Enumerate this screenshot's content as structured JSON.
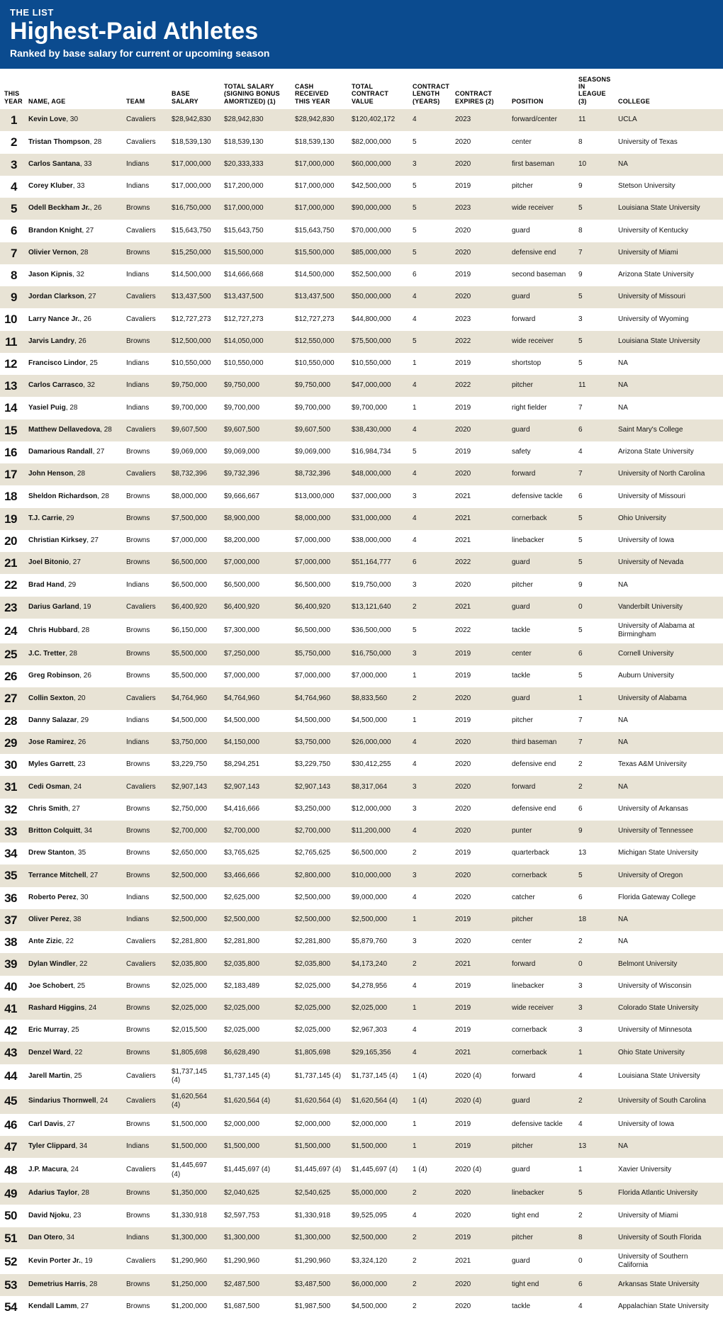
{
  "header": {
    "kicker": "THE LIST",
    "headline": "Highest-Paid Athletes",
    "subhead": "Ranked by base salary for current or upcoming season"
  },
  "columns": [
    "THIS YEAR",
    "NAME, AGE",
    "TEAM",
    "BASE SALARY",
    "TOTAL SALARY (SIGNING BONUS AMORTIZED) (1)",
    "CASH RECEIVED THIS YEAR",
    "TOTAL CONTRACT VALUE",
    "CONTRACT LENGTH (YEARS)",
    "CONTRACT EXPIRES (2)",
    "POSITION",
    "SEASONS IN LEAGUE (3)",
    "COLLEGE"
  ],
  "rows": [
    {
      "rank": "1",
      "name": "Kevin Love",
      "age": "30",
      "team": "Cavaliers",
      "base": "$28,942,830",
      "total": "$28,942,830",
      "cash": "$28,942,830",
      "cv": "$120,402,172",
      "len": "4",
      "exp": "2023",
      "pos": "forward/center",
      "seas": "11",
      "coll": "UCLA"
    },
    {
      "rank": "2",
      "name": "Tristan Thompson",
      "age": "28",
      "team": "Cavaliers",
      "base": "$18,539,130",
      "total": "$18,539,130",
      "cash": "$18,539,130",
      "cv": "$82,000,000",
      "len": "5",
      "exp": "2020",
      "pos": "center",
      "seas": "8",
      "coll": "University of Texas"
    },
    {
      "rank": "3",
      "name": "Carlos Santana",
      "age": "33",
      "team": "Indians",
      "base": "$17,000,000",
      "total": "$20,333,333",
      "cash": "$17,000,000",
      "cv": "$60,000,000",
      "len": "3",
      "exp": "2020",
      "pos": "first baseman",
      "seas": "10",
      "coll": "NA"
    },
    {
      "rank": "4",
      "name": "Corey Kluber",
      "age": "33",
      "team": "Indians",
      "base": "$17,000,000",
      "total": "$17,200,000",
      "cash": "$17,000,000",
      "cv": "$42,500,000",
      "len": "5",
      "exp": "2019",
      "pos": "pitcher",
      "seas": "9",
      "coll": "Stetson University"
    },
    {
      "rank": "5",
      "name": "Odell Beckham Jr.",
      "age": "26",
      "team": "Browns",
      "base": "$16,750,000",
      "total": "$17,000,000",
      "cash": "$17,000,000",
      "cv": "$90,000,000",
      "len": "5",
      "exp": "2023",
      "pos": "wide receiver",
      "seas": "5",
      "coll": "Louisiana State University"
    },
    {
      "rank": "6",
      "name": "Brandon Knight",
      "age": "27",
      "team": "Cavaliers",
      "base": "$15,643,750",
      "total": "$15,643,750",
      "cash": "$15,643,750",
      "cv": "$70,000,000",
      "len": "5",
      "exp": "2020",
      "pos": "guard",
      "seas": "8",
      "coll": "University of Kentucky"
    },
    {
      "rank": "7",
      "name": "Olivier Vernon",
      "age": "28",
      "team": "Browns",
      "base": "$15,250,000",
      "total": "$15,500,000",
      "cash": "$15,500,000",
      "cv": "$85,000,000",
      "len": "5",
      "exp": "2020",
      "pos": "defensive end",
      "seas": "7",
      "coll": "University of Miami"
    },
    {
      "rank": "8",
      "name": "Jason Kipnis",
      "age": "32",
      "team": "Indians",
      "base": "$14,500,000",
      "total": "$14,666,668",
      "cash": "$14,500,000",
      "cv": "$52,500,000",
      "len": "6",
      "exp": "2019",
      "pos": "second baseman",
      "seas": "9",
      "coll": "Arizona State University"
    },
    {
      "rank": "9",
      "name": "Jordan Clarkson",
      "age": "27",
      "team": "Cavaliers",
      "base": "$13,437,500",
      "total": "$13,437,500",
      "cash": "$13,437,500",
      "cv": "$50,000,000",
      "len": "4",
      "exp": "2020",
      "pos": "guard",
      "seas": "5",
      "coll": "University of Missouri"
    },
    {
      "rank": "10",
      "name": "Larry Nance Jr.",
      "age": "26",
      "team": "Cavaliers",
      "base": "$12,727,273",
      "total": "$12,727,273",
      "cash": "$12,727,273",
      "cv": "$44,800,000",
      "len": "4",
      "exp": "2023",
      "pos": "forward",
      "seas": "3",
      "coll": "University of Wyoming"
    },
    {
      "rank": "11",
      "name": "Jarvis Landry",
      "age": "26",
      "team": "Browns",
      "base": "$12,500,000",
      "total": "$14,050,000",
      "cash": "$12,550,000",
      "cv": "$75,500,000",
      "len": "5",
      "exp": "2022",
      "pos": "wide receiver",
      "seas": "5",
      "coll": "Louisiana State University"
    },
    {
      "rank": "12",
      "name": "Francisco Lindor",
      "age": "25",
      "team": "Indians",
      "base": "$10,550,000",
      "total": "$10,550,000",
      "cash": "$10,550,000",
      "cv": "$10,550,000",
      "len": "1",
      "exp": "2019",
      "pos": "shortstop",
      "seas": "5",
      "coll": "NA"
    },
    {
      "rank": "13",
      "name": "Carlos Carrasco",
      "age": "32",
      "team": "Indians",
      "base": "$9,750,000",
      "total": "$9,750,000",
      "cash": "$9,750,000",
      "cv": "$47,000,000",
      "len": "4",
      "exp": "2022",
      "pos": "pitcher",
      "seas": "11",
      "coll": "NA"
    },
    {
      "rank": "14",
      "name": "Yasiel Puig",
      "age": "28",
      "team": "Indians",
      "base": "$9,700,000",
      "total": "$9,700,000",
      "cash": "$9,700,000",
      "cv": "$9,700,000",
      "len": "1",
      "exp": "2019",
      "pos": "right fielder",
      "seas": "7",
      "coll": "NA"
    },
    {
      "rank": "15",
      "name": "Matthew Dellavedova",
      "age": "28",
      "team": "Cavaliers",
      "base": "$9,607,500",
      "total": "$9,607,500",
      "cash": "$9,607,500",
      "cv": "$38,430,000",
      "len": "4",
      "exp": "2020",
      "pos": "guard",
      "seas": "6",
      "coll": "Saint Mary's College"
    },
    {
      "rank": "16",
      "name": "Damarious Randall",
      "age": "27",
      "team": "Browns",
      "base": "$9,069,000",
      "total": "$9,069,000",
      "cash": "$9,069,000",
      "cv": "$16,984,734",
      "len": "5",
      "exp": "2019",
      "pos": "safety",
      "seas": "4",
      "coll": "Arizona State University"
    },
    {
      "rank": "17",
      "name": "John Henson",
      "age": "28",
      "team": "Cavaliers",
      "base": "$8,732,396",
      "total": "$9,732,396",
      "cash": "$8,732,396",
      "cv": "$48,000,000",
      "len": "4",
      "exp": "2020",
      "pos": "forward",
      "seas": "7",
      "coll": "University of North Carolina"
    },
    {
      "rank": "18",
      "name": "Sheldon Richardson",
      "age": "28",
      "team": "Browns",
      "base": "$8,000,000",
      "total": "$9,666,667",
      "cash": "$13,000,000",
      "cv": "$37,000,000",
      "len": "3",
      "exp": "2021",
      "pos": "defensive tackle",
      "seas": "6",
      "coll": "University of Missouri"
    },
    {
      "rank": "19",
      "name": "T.J. Carrie",
      "age": "29",
      "team": "Browns",
      "base": "$7,500,000",
      "total": "$8,900,000",
      "cash": "$8,000,000",
      "cv": "$31,000,000",
      "len": "4",
      "exp": "2021",
      "pos": "cornerback",
      "seas": "5",
      "coll": "Ohio University"
    },
    {
      "rank": "20",
      "name": "Christian Kirksey",
      "age": "27",
      "team": "Browns",
      "base": "$7,000,000",
      "total": "$8,200,000",
      "cash": "$7,000,000",
      "cv": "$38,000,000",
      "len": "4",
      "exp": "2021",
      "pos": "linebacker",
      "seas": "5",
      "coll": "University of Iowa"
    },
    {
      "rank": "21",
      "name": "Joel Bitonio",
      "age": "27",
      "team": "Browns",
      "base": "$6,500,000",
      "total": "$7,000,000",
      "cash": "$7,000,000",
      "cv": "$51,164,777",
      "len": "6",
      "exp": "2022",
      "pos": "guard",
      "seas": "5",
      "coll": "University of Nevada"
    },
    {
      "rank": "22",
      "name": "Brad Hand",
      "age": "29",
      "team": "Indians",
      "base": "$6,500,000",
      "total": "$6,500,000",
      "cash": "$6,500,000",
      "cv": "$19,750,000",
      "len": "3",
      "exp": "2020",
      "pos": "pitcher",
      "seas": "9",
      "coll": "NA"
    },
    {
      "rank": "23",
      "name": "Darius Garland",
      "age": "19",
      "team": "Cavaliers",
      "base": "$6,400,920",
      "total": "$6,400,920",
      "cash": "$6,400,920",
      "cv": "$13,121,640",
      "len": "2",
      "exp": "2021",
      "pos": "guard",
      "seas": "0",
      "coll": "Vanderbilt University"
    },
    {
      "rank": "24",
      "name": "Chris Hubbard",
      "age": "28",
      "team": "Browns",
      "base": "$6,150,000",
      "total": "$7,300,000",
      "cash": "$6,500,000",
      "cv": "$36,500,000",
      "len": "5",
      "exp": "2022",
      "pos": "tackle",
      "seas": "5",
      "coll": "University of Alabama at Birmingham"
    },
    {
      "rank": "25",
      "name": "J.C. Tretter",
      "age": "28",
      "team": "Browns",
      "base": "$5,500,000",
      "total": "$7,250,000",
      "cash": "$5,750,000",
      "cv": "$16,750,000",
      "len": "3",
      "exp": "2019",
      "pos": "center",
      "seas": "6",
      "coll": "Cornell University"
    },
    {
      "rank": "26",
      "name": "Greg Robinson",
      "age": "26",
      "team": "Browns",
      "base": "$5,500,000",
      "total": "$7,000,000",
      "cash": "$7,000,000",
      "cv": "$7,000,000",
      "len": "1",
      "exp": "2019",
      "pos": "tackle",
      "seas": "5",
      "coll": "Auburn University"
    },
    {
      "rank": "27",
      "name": "Collin Sexton",
      "age": "20",
      "team": "Cavaliers",
      "base": "$4,764,960",
      "total": "$4,764,960",
      "cash": "$4,764,960",
      "cv": "$8,833,560",
      "len": "2",
      "exp": "2020",
      "pos": "guard",
      "seas": "1",
      "coll": "University of Alabama"
    },
    {
      "rank": "28",
      "name": "Danny Salazar",
      "age": "29",
      "team": "Indians",
      "base": "$4,500,000",
      "total": "$4,500,000",
      "cash": "$4,500,000",
      "cv": "$4,500,000",
      "len": "1",
      "exp": "2019",
      "pos": "pitcher",
      "seas": "7",
      "coll": "NA"
    },
    {
      "rank": "29",
      "name": "Jose Ramirez",
      "age": "26",
      "team": "Indians",
      "base": "$3,750,000",
      "total": "$4,150,000",
      "cash": "$3,750,000",
      "cv": "$26,000,000",
      "len": "4",
      "exp": "2020",
      "pos": "third baseman",
      "seas": "7",
      "coll": "NA"
    },
    {
      "rank": "30",
      "name": "Myles Garrett",
      "age": "23",
      "team": "Browns",
      "base": "$3,229,750",
      "total": "$8,294,251",
      "cash": "$3,229,750",
      "cv": "$30,412,255",
      "len": "4",
      "exp": "2020",
      "pos": "defensive end",
      "seas": "2",
      "coll": "Texas A&M University"
    },
    {
      "rank": "31",
      "name": "Cedi Osman",
      "age": "24",
      "team": "Cavaliers",
      "base": "$2,907,143",
      "total": "$2,907,143",
      "cash": "$2,907,143",
      "cv": "$8,317,064",
      "len": "3",
      "exp": "2020",
      "pos": "forward",
      "seas": "2",
      "coll": "NA"
    },
    {
      "rank": "32",
      "name": "Chris Smith",
      "age": "27",
      "team": "Browns",
      "base": "$2,750,000",
      "total": "$4,416,666",
      "cash": "$3,250,000",
      "cv": "$12,000,000",
      "len": "3",
      "exp": "2020",
      "pos": "defensive end",
      "seas": "6",
      "coll": "University of Arkansas"
    },
    {
      "rank": "33",
      "name": "Britton Colquitt",
      "age": "34",
      "team": "Browns",
      "base": "$2,700,000",
      "total": "$2,700,000",
      "cash": "$2,700,000",
      "cv": "$11,200,000",
      "len": "4",
      "exp": "2020",
      "pos": "punter",
      "seas": "9",
      "coll": "University of Tennessee"
    },
    {
      "rank": "34",
      "name": "Drew Stanton",
      "age": "35",
      "team": "Browns",
      "base": "$2,650,000",
      "total": "$3,765,625",
      "cash": "$2,765,625",
      "cv": "$6,500,000",
      "len": "2",
      "exp": "2019",
      "pos": "quarterback",
      "seas": "13",
      "coll": "Michigan State University"
    },
    {
      "rank": "35",
      "name": "Terrance Mitchell",
      "age": "27",
      "team": "Browns",
      "base": "$2,500,000",
      "total": "$3,466,666",
      "cash": "$2,800,000",
      "cv": "$10,000,000",
      "len": "3",
      "exp": "2020",
      "pos": "cornerback",
      "seas": "5",
      "coll": "University of Oregon"
    },
    {
      "rank": "36",
      "name": "Roberto Perez",
      "age": "30",
      "team": "Indians",
      "base": "$2,500,000",
      "total": "$2,625,000",
      "cash": "$2,500,000",
      "cv": "$9,000,000",
      "len": "4",
      "exp": "2020",
      "pos": "catcher",
      "seas": "6",
      "coll": "Florida Gateway College"
    },
    {
      "rank": "37",
      "name": "Oliver Perez",
      "age": "38",
      "team": "Indians",
      "base": "$2,500,000",
      "total": "$2,500,000",
      "cash": "$2,500,000",
      "cv": "$2,500,000",
      "len": "1",
      "exp": "2019",
      "pos": "pitcher",
      "seas": "18",
      "coll": "NA"
    },
    {
      "rank": "38",
      "name": "Ante Zizic",
      "age": "22",
      "team": "Cavaliers",
      "base": "$2,281,800",
      "total": "$2,281,800",
      "cash": "$2,281,800",
      "cv": "$5,879,760",
      "len": "3",
      "exp": "2020",
      "pos": "center",
      "seas": "2",
      "coll": "NA"
    },
    {
      "rank": "39",
      "name": "Dylan Windler",
      "age": "22",
      "team": "Cavaliers",
      "base": "$2,035,800",
      "total": "$2,035,800",
      "cash": "$2,035,800",
      "cv": "$4,173,240",
      "len": "2",
      "exp": "2021",
      "pos": "forward",
      "seas": "0",
      "coll": "Belmont University"
    },
    {
      "rank": "40",
      "name": "Joe Schobert",
      "age": "25",
      "team": "Browns",
      "base": "$2,025,000",
      "total": "$2,183,489",
      "cash": "$2,025,000",
      "cv": "$4,278,956",
      "len": "4",
      "exp": "2019",
      "pos": "linebacker",
      "seas": "3",
      "coll": "University of Wisconsin"
    },
    {
      "rank": "41",
      "name": "Rashard Higgins",
      "age": "24",
      "team": "Browns",
      "base": "$2,025,000",
      "total": "$2,025,000",
      "cash": "$2,025,000",
      "cv": "$2,025,000",
      "len": "1",
      "exp": "2019",
      "pos": "wide receiver",
      "seas": "3",
      "coll": "Colorado State University"
    },
    {
      "rank": "42",
      "name": "Eric Murray",
      "age": "25",
      "team": "Browns",
      "base": "$2,015,500",
      "total": "$2,025,000",
      "cash": "$2,025,000",
      "cv": "$2,967,303",
      "len": "4",
      "exp": "2019",
      "pos": "cornerback",
      "seas": "3",
      "coll": "University of Minnesota"
    },
    {
      "rank": "43",
      "name": "Denzel Ward",
      "age": "22",
      "team": "Browns",
      "base": "$1,805,698",
      "total": "$6,628,490",
      "cash": "$1,805,698",
      "cv": "$29,165,356",
      "len": "4",
      "exp": "2021",
      "pos": "cornerback",
      "seas": "1",
      "coll": "Ohio State University"
    },
    {
      "rank": "44",
      "name": "Jarell Martin",
      "age": "25",
      "team": "Cavaliers",
      "base": "$1,737,145 (4)",
      "total": "$1,737,145 (4)",
      "cash": "$1,737,145 (4)",
      "cv": "$1,737,145 (4)",
      "len": "1 (4)",
      "exp": "2020 (4)",
      "pos": "forward",
      "seas": "4",
      "coll": "Louisiana State University"
    },
    {
      "rank": "45",
      "name": "Sindarius Thornwell",
      "age": "24",
      "team": "Cavaliers",
      "base": "$1,620,564 (4)",
      "total": "$1,620,564 (4)",
      "cash": "$1,620,564 (4)",
      "cv": "$1,620,564 (4)",
      "len": "1 (4)",
      "exp": "2020 (4)",
      "pos": "guard",
      "seas": "2",
      "coll": "University of South Carolina"
    },
    {
      "rank": "46",
      "name": "Carl Davis",
      "age": "27",
      "team": "Browns",
      "base": "$1,500,000",
      "total": "$2,000,000",
      "cash": "$2,000,000",
      "cv": "$2,000,000",
      "len": "1",
      "exp": "2019",
      "pos": "defensive tackle",
      "seas": "4",
      "coll": "University of Iowa"
    },
    {
      "rank": "47",
      "name": "Tyler Clippard",
      "age": "34",
      "team": "Indians",
      "base": "$1,500,000",
      "total": "$1,500,000",
      "cash": "$1,500,000",
      "cv": "$1,500,000",
      "len": "1",
      "exp": "2019",
      "pos": "pitcher",
      "seas": "13",
      "coll": "NA"
    },
    {
      "rank": "48",
      "name": "J.P. Macura",
      "age": "24",
      "team": "Cavaliers",
      "base": "$1,445,697 (4)",
      "total": "$1,445,697 (4)",
      "cash": "$1,445,697 (4)",
      "cv": "$1,445,697 (4)",
      "len": "1 (4)",
      "exp": "2020 (4)",
      "pos": "guard",
      "seas": "1",
      "coll": "Xavier University"
    },
    {
      "rank": "49",
      "name": "Adarius Taylor",
      "age": "28",
      "team": "Browns",
      "base": "$1,350,000",
      "total": "$2,040,625",
      "cash": "$2,540,625",
      "cv": "$5,000,000",
      "len": "2",
      "exp": "2020",
      "pos": "linebacker",
      "seas": "5",
      "coll": "Florida Atlantic University"
    },
    {
      "rank": "50",
      "name": "David Njoku",
      "age": "23",
      "team": "Browns",
      "base": "$1,330,918",
      "total": "$2,597,753",
      "cash": "$1,330,918",
      "cv": "$9,525,095",
      "len": "4",
      "exp": "2020",
      "pos": "tight end",
      "seas": "2",
      "coll": "University of Miami"
    },
    {
      "rank": "51",
      "name": "Dan Otero",
      "age": "34",
      "team": "Indians",
      "base": "$1,300,000",
      "total": "$1,300,000",
      "cash": "$1,300,000",
      "cv": "$2,500,000",
      "len": "2",
      "exp": "2019",
      "pos": "pitcher",
      "seas": "8",
      "coll": "University of South Florida"
    },
    {
      "rank": "52",
      "name": "Kevin Porter Jr.",
      "age": "19",
      "team": "Cavaliers",
      "base": "$1,290,960",
      "total": "$1,290,960",
      "cash": "$1,290,960",
      "cv": "$3,324,120",
      "len": "2",
      "exp": "2021",
      "pos": "guard",
      "seas": "0",
      "coll": "University of Southern California"
    },
    {
      "rank": "53",
      "name": "Demetrius Harris",
      "age": "28",
      "team": "Browns",
      "base": "$1,250,000",
      "total": "$2,487,500",
      "cash": "$3,487,500",
      "cv": "$6,000,000",
      "len": "2",
      "exp": "2020",
      "pos": "tight end",
      "seas": "6",
      "coll": "Arkansas State University"
    },
    {
      "rank": "54",
      "name": "Kendall Lamm",
      "age": "27",
      "team": "Browns",
      "base": "$1,200,000",
      "total": "$1,687,500",
      "cash": "$1,987,500",
      "cv": "$4,500,000",
      "len": "2",
      "exp": "2020",
      "pos": "tackle",
      "seas": "4",
      "coll": "Appalachian State University"
    }
  ]
}
